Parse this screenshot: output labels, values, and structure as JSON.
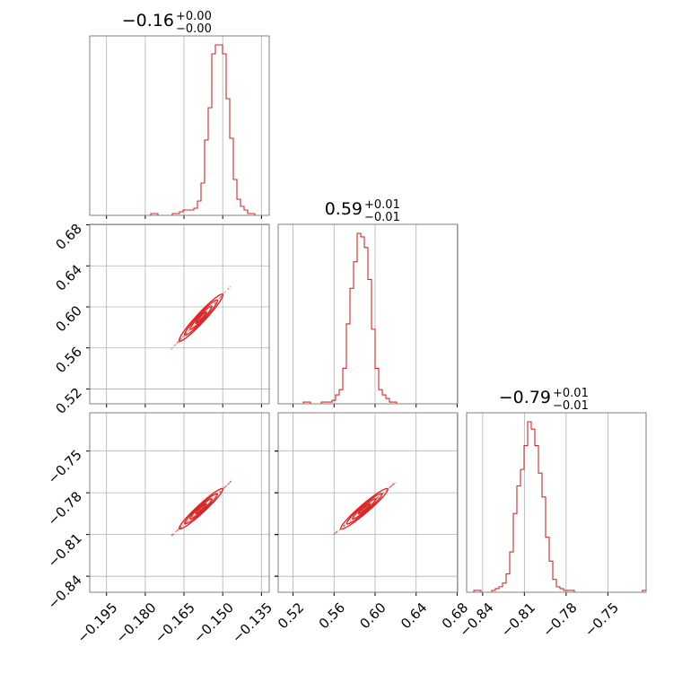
{
  "chart_data": {
    "type": "corner",
    "color": "#d62728",
    "frame_color": "#808080",
    "grid_color": "#b0b0b0",
    "grid": true,
    "params": [
      {
        "title": {
          "median": "−0.16",
          "plus": "+0.00",
          "minus": "−0.00"
        },
        "range": [
          -0.2015,
          -0.132
        ],
        "ticks": [
          -0.195,
          -0.18,
          -0.165,
          -0.15,
          -0.135
        ],
        "tick_labels": [
          "−0.195",
          "−0.180",
          "−0.165",
          "−0.150",
          "−0.135"
        ],
        "mean": -0.1584,
        "sigma": 0.0035
      },
      {
        "title": {
          "median": "0.59",
          "plus": "+0.01",
          "minus": "−0.01"
        },
        "range": [
          0.5055,
          0.6805
        ],
        "ticks": [
          0.52,
          0.56,
          0.6,
          0.64,
          0.68
        ],
        "tick_labels": [
          "0.52",
          "0.56",
          "0.60",
          "0.64",
          "0.68"
        ],
        "mean": 0.5895,
        "sigma": 0.0095
      },
      {
        "title": {
          "median": "−0.79",
          "plus": "+0.01",
          "minus": "−0.01"
        },
        "range": [
          -0.8515,
          -0.7225
        ],
        "ticks": [
          -0.84,
          -0.81,
          -0.78,
          -0.75
        ],
        "tick_labels": [
          "−0.84",
          "−0.81",
          "−0.78",
          "−0.75"
        ],
        "mean": -0.7915,
        "sigma": 0.006
      }
    ],
    "histograms": [
      {
        "param": 0,
        "bin_edges_start": -0.2015,
        "bin_width": 0.00139,
        "heights": [
          0,
          0,
          0,
          0,
          0,
          0,
          0,
          0,
          0,
          0,
          0,
          0,
          0,
          0,
          0,
          0,
          0,
          1,
          1,
          0,
          0,
          0,
          0,
          1,
          1,
          2,
          3,
          3,
          3,
          4,
          8,
          18,
          42,
          60,
          90,
          95,
          95,
          90,
          65,
          43,
          20,
          9,
          5,
          3,
          1,
          1,
          0,
          0,
          0,
          0
        ]
      },
      {
        "param": 1,
        "bin_edges_start": 0.5055,
        "bin_width": 0.0035,
        "heights": [
          0,
          0,
          0,
          0,
          0,
          0,
          0,
          1,
          1,
          0,
          0,
          0,
          1,
          1,
          1,
          2,
          5,
          8,
          20,
          45,
          65,
          80,
          96,
          94,
          88,
          70,
          42,
          20,
          8,
          5,
          3,
          1,
          1,
          0,
          0,
          0,
          0,
          0,
          0,
          0,
          0,
          0,
          0,
          0,
          0,
          0,
          0,
          0,
          0,
          0
        ]
      },
      {
        "param": 2,
        "bin_edges_start": -0.8515,
        "bin_width": 0.00258,
        "heights": [
          0,
          0,
          1,
          1,
          0,
          0,
          0,
          1,
          2,
          3,
          5,
          10,
          22,
          43,
          58,
          67,
          80,
          93,
          89,
          80,
          65,
          52,
          30,
          17,
          7,
          3,
          2,
          1,
          1,
          1,
          0,
          0,
          0,
          0,
          0,
          0,
          0,
          0,
          0,
          0,
          0,
          0,
          0,
          0,
          0,
          0,
          0,
          0,
          0,
          1
        ]
      }
    ],
    "pair_correlations": [
      {
        "x_param": 0,
        "y_param": 1,
        "correlation": 0.985
      },
      {
        "x_param": 0,
        "y_param": 2,
        "correlation": 0.985
      },
      {
        "x_param": 1,
        "y_param": 2,
        "correlation": 0.985
      }
    ]
  }
}
